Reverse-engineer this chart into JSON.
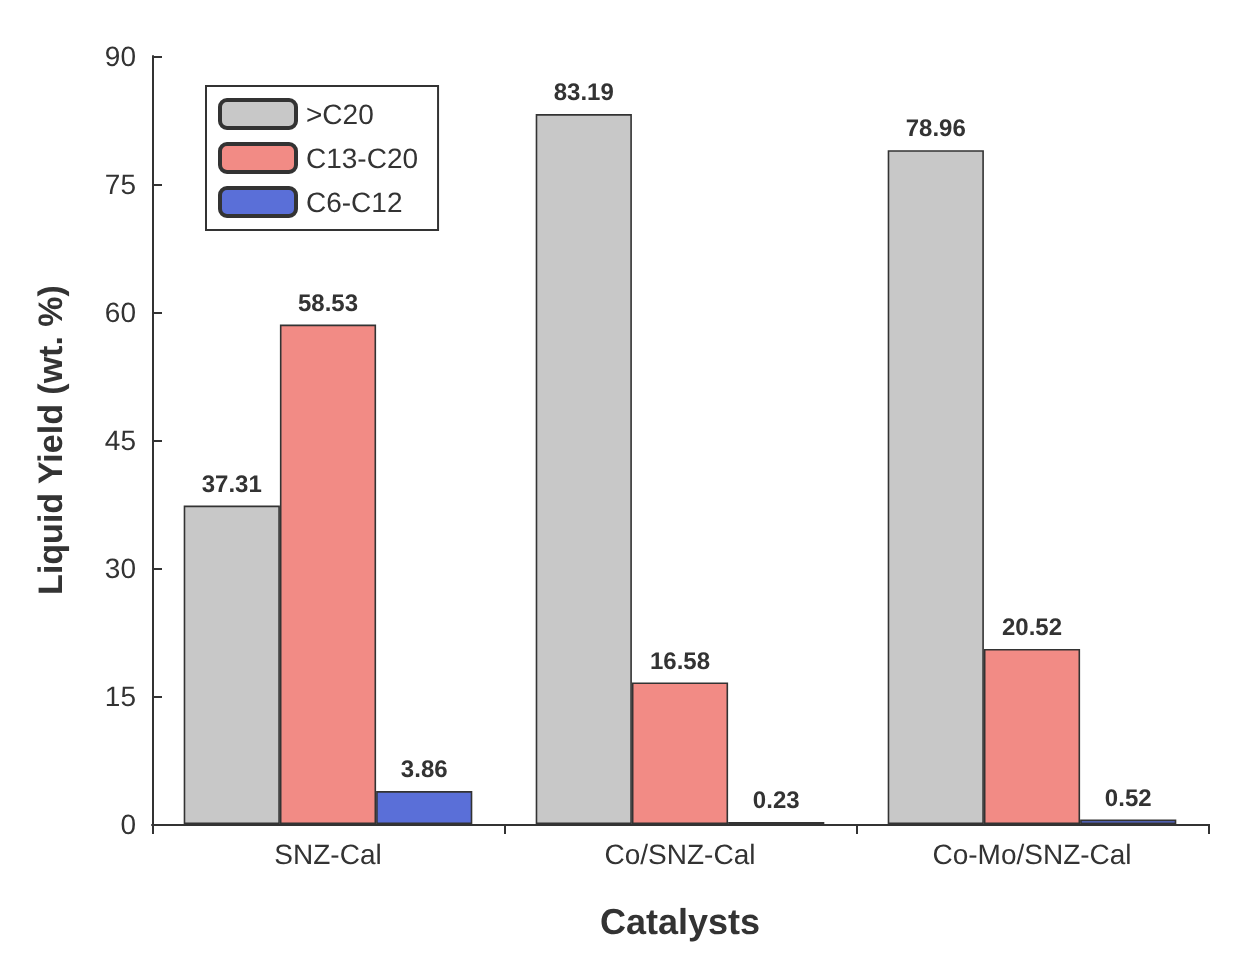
{
  "chart_data": {
    "type": "bar",
    "xlabel": "Catalysts",
    "ylabel": "Liquid Yield (wt. %)",
    "categories": [
      "SNZ-Cal",
      "Co/SNZ-Cal",
      "Co-Mo/SNZ-Cal"
    ],
    "series": [
      {
        "name": ">C20",
        "color": "#c8c8c8",
        "values": [
          37.31,
          83.19,
          78.96
        ]
      },
      {
        "name": "C13-C20",
        "color": "#f28b85",
        "values": [
          58.53,
          16.58,
          20.52
        ]
      },
      {
        "name": "C6-C12",
        "color": "#5a6fd8",
        "values": [
          3.86,
          0.23,
          0.52
        ]
      }
    ],
    "ylim": [
      0,
      90
    ],
    "yticks": [
      0,
      15,
      30,
      45,
      60,
      75,
      90
    ],
    "data_labels": true,
    "legend": "top left",
    "grid": false
  }
}
